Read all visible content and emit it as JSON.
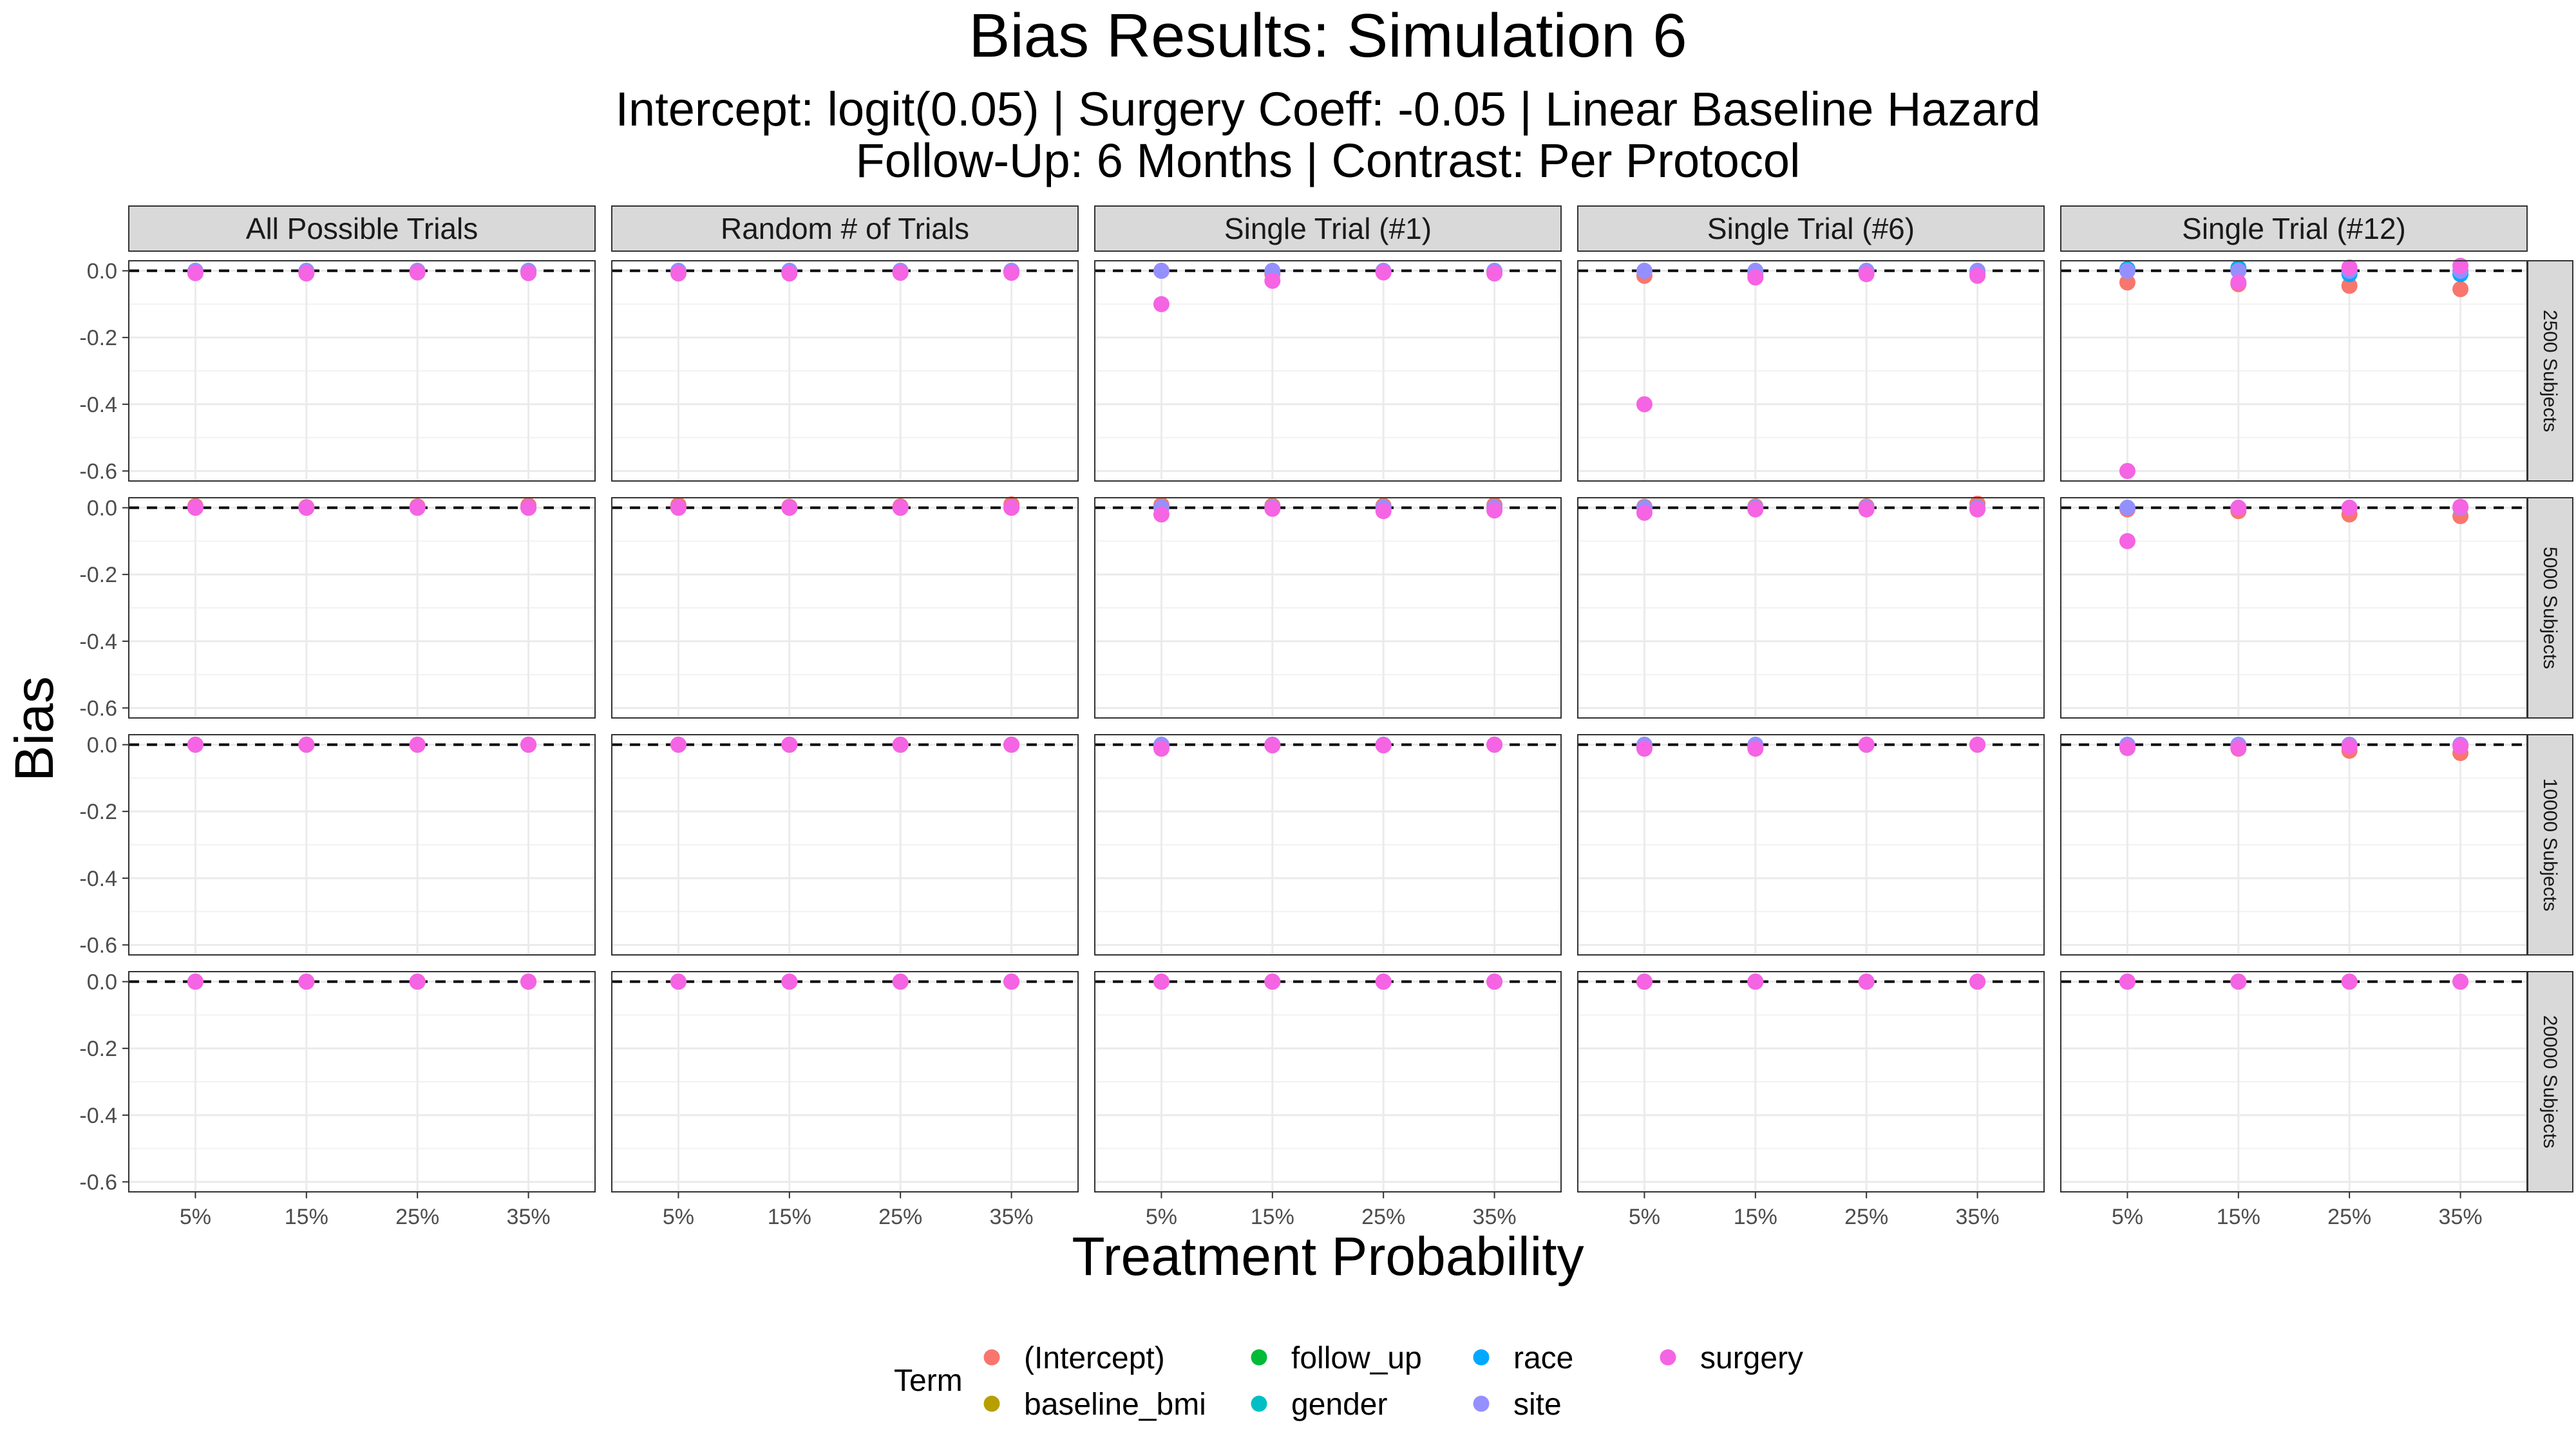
{
  "chart_data": {
    "type": "scatter",
    "title": "Bias Results: Simulation 6",
    "subtitle_lines": [
      "Intercept: logit(0.05) | Surgery Coeff: -0.05 | Linear Baseline Hazard",
      "Follow-Up: 6 Months | Contrast: Per Protocol"
    ],
    "xlabel": "Treatment Probability",
    "ylabel": "Bias",
    "x_categories": [
      "5%",
      "15%",
      "25%",
      "35%"
    ],
    "y_ticks": [
      0.0,
      -0.2,
      -0.4,
      -0.6
    ],
    "y_tick_labels": [
      "0.0",
      "-0.2",
      "-0.4",
      "-0.6"
    ],
    "ylim": [
      -0.63,
      0.03
    ],
    "reference_line": 0.0,
    "grid": true,
    "facet_columns": [
      "All Possible Trials",
      "Random # of Trials",
      "Single Trial (#1)",
      "Single Trial (#6)",
      "Single Trial (#12)"
    ],
    "facet_rows": [
      "2500 Subjects",
      "5000 Subjects",
      "10000 Subjects",
      "20000 Subjects"
    ],
    "legend": {
      "title": "Term",
      "position": "bottom",
      "items": [
        {
          "name": "(Intercept)",
          "color": "#F8766D"
        },
        {
          "name": "baseline_bmi",
          "color": "#B79F00"
        },
        {
          "name": "follow_up",
          "color": "#00BA38"
        },
        {
          "name": "gender",
          "color": "#00BFC4"
        },
        {
          "name": "race",
          "color": "#00A9FF"
        },
        {
          "name": "site",
          "color": "#9590FF"
        },
        {
          "name": "surgery",
          "color": "#F564E3"
        }
      ]
    },
    "panels": [
      [
        {
          "series": {
            "(Intercept)": [
              -0.005,
              -0.005,
              -0.003,
              -0.005
            ],
            "site": [
              0.0,
              0.0,
              0.0,
              0.0
            ],
            "surgery": [
              -0.007,
              -0.008,
              -0.005,
              -0.007
            ]
          }
        },
        {
          "series": {
            "(Intercept)": [
              -0.005,
              -0.006,
              -0.005,
              -0.004
            ],
            "site": [
              0.0,
              0.0,
              0.0,
              0.0
            ],
            "surgery": [
              -0.008,
              -0.008,
              -0.006,
              -0.006
            ]
          }
        },
        {
          "series": {
            "(Intercept)": [
              0.0,
              -0.01,
              -0.004,
              -0.005
            ],
            "site": [
              0.0,
              0.0,
              0.0,
              0.0
            ],
            "surgery": [
              -0.1,
              -0.03,
              -0.005,
              -0.008
            ]
          }
        },
        {
          "series": {
            "(Intercept)": [
              -0.015,
              -0.012,
              -0.006,
              -0.01
            ],
            "site": [
              0.0,
              0.0,
              0.0,
              0.0
            ],
            "surgery": [
              -0.4,
              -0.02,
              -0.01,
              -0.015
            ]
          }
        },
        {
          "series": {
            "(Intercept)": [
              -0.035,
              -0.04,
              -0.045,
              -0.055
            ],
            "race": [
              0.005,
              0.008,
              -0.01,
              -0.01
            ],
            "site": [
              0.0,
              0.0,
              0.0,
              0.0
            ],
            "surgery": [
              -0.6,
              -0.035,
              0.01,
              0.015
            ]
          }
        }
      ],
      [
        {
          "series": {
            "(Intercept)": [
              0.005,
              0.002,
              0.004,
              0.007
            ],
            "site": [
              0.0,
              0.0,
              0.0,
              0.0
            ],
            "surgery": [
              0.0,
              0.0,
              0.0,
              0.0
            ]
          }
        },
        {
          "series": {
            "(Intercept)": [
              0.008,
              0.003,
              0.004,
              0.01
            ],
            "site": [
              0.0,
              0.0,
              0.0,
              0.0
            ],
            "surgery": [
              0.0,
              0.0,
              0.0,
              0.0
            ]
          }
        },
        {
          "series": {
            "(Intercept)": [
              0.008,
              0.006,
              0.006,
              0.008
            ],
            "site": [
              0.0,
              0.0,
              0.0,
              0.0
            ],
            "surgery": [
              -0.02,
              -0.003,
              -0.01,
              -0.008
            ]
          }
        },
        {
          "series": {
            "(Intercept)": [
              0.003,
              0.004,
              0.004,
              0.012
            ],
            "site": [
              0.0,
              0.0,
              0.0,
              0.0
            ],
            "surgery": [
              -0.015,
              -0.005,
              -0.005,
              -0.005
            ]
          }
        },
        {
          "series": {
            "(Intercept)": [
              -0.005,
              -0.01,
              -0.02,
              -0.025
            ],
            "site": [
              0.0,
              0.0,
              0.0,
              0.0
            ],
            "surgery": [
              -0.1,
              0.0,
              0.0,
              0.003
            ]
          }
        }
      ],
      [
        {
          "series": {
            "(Intercept)": [
              0.0,
              0.0,
              0.0,
              0.0
            ],
            "site": [
              0.0,
              0.0,
              0.0,
              0.0
            ],
            "surgery": [
              0.0,
              0.0,
              0.0,
              0.0
            ]
          }
        },
        {
          "series": {
            "(Intercept)": [
              0.0,
              0.0,
              0.0,
              0.0
            ],
            "site": [
              0.0,
              0.0,
              0.0,
              0.0
            ],
            "surgery": [
              0.0,
              0.0,
              0.0,
              0.0
            ]
          }
        },
        {
          "series": {
            "(Intercept)": [
              -0.005,
              0.0,
              0.0,
              0.0
            ],
            "site": [
              0.0,
              0.0,
              0.0,
              0.0
            ],
            "surgery": [
              -0.012,
              -0.002,
              -0.002,
              0.0
            ]
          }
        },
        {
          "series": {
            "(Intercept)": [
              -0.005,
              -0.005,
              0.0,
              0.0
            ],
            "site": [
              0.0,
              0.0,
              0.0,
              0.0
            ],
            "surgery": [
              -0.012,
              -0.012,
              0.0,
              0.0
            ]
          }
        },
        {
          "series": {
            "(Intercept)": [
              -0.008,
              -0.012,
              -0.018,
              -0.025
            ],
            "site": [
              0.0,
              0.0,
              0.0,
              0.0
            ],
            "surgery": [
              -0.01,
              -0.01,
              -0.005,
              -0.005
            ]
          }
        }
      ],
      [
        {
          "series": {
            "(Intercept)": [
              0.0,
              0.0,
              0.0,
              0.0
            ],
            "site": [
              0.0,
              0.0,
              0.0,
              0.0
            ],
            "surgery": [
              0.0,
              0.0,
              0.0,
              0.0
            ]
          }
        },
        {
          "series": {
            "(Intercept)": [
              0.0,
              0.0,
              0.0,
              0.0
            ],
            "site": [
              0.0,
              0.0,
              0.0,
              0.0
            ],
            "surgery": [
              0.0,
              0.0,
              0.0,
              0.0
            ]
          }
        },
        {
          "series": {
            "(Intercept)": [
              0.0,
              0.0,
              0.0,
              0.0
            ],
            "site": [
              0.0,
              0.0,
              0.0,
              0.0
            ],
            "surgery": [
              0.0,
              0.0,
              0.0,
              0.0
            ]
          }
        },
        {
          "series": {
            "(Intercept)": [
              0.0,
              0.0,
              0.0,
              0.0
            ],
            "site": [
              0.0,
              0.0,
              0.0,
              0.0
            ],
            "surgery": [
              0.0,
              0.0,
              0.0,
              0.0
            ]
          }
        },
        {
          "series": {
            "(Intercept)": [
              0.0,
              0.0,
              0.0,
              0.0
            ],
            "site": [
              0.0,
              0.0,
              0.0,
              0.0
            ],
            "surgery": [
              0.0,
              0.0,
              0.0,
              0.0
            ]
          }
        }
      ]
    ]
  }
}
